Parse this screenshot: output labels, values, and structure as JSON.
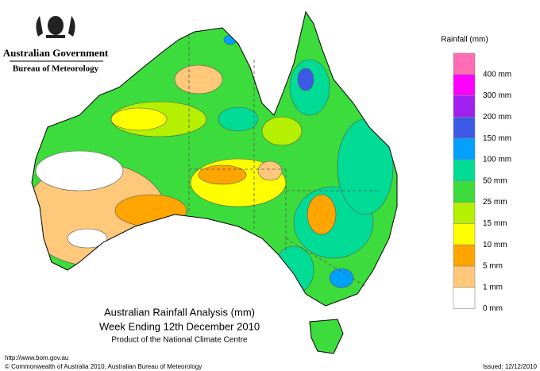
{
  "header": {
    "org": "Australian Government",
    "bureau": "Bureau of Meteorology"
  },
  "legend": {
    "title": "Rainfall (mm)",
    "items": [
      {
        "label": "400 mm",
        "color": "#ff6eb4"
      },
      {
        "label": "300 mm",
        "color": "#ff00ff"
      },
      {
        "label": "200 mm",
        "color": "#a020f0"
      },
      {
        "label": "150 mm",
        "color": "#3c5ae6"
      },
      {
        "label": "100 mm",
        "color": "#00a0ff"
      },
      {
        "label": "50 mm",
        "color": "#00dc96"
      },
      {
        "label": "25 mm",
        "color": "#3cdc3c"
      },
      {
        "label": "15 mm",
        "color": "#b4f000"
      },
      {
        "label": "10 mm",
        "color": "#ffff00"
      },
      {
        "label": "5 mm",
        "color": "#ffa500"
      },
      {
        "label": "1 mm",
        "color": "#ffc87a"
      },
      {
        "label": "0 mm",
        "color": "#ffffff"
      }
    ]
  },
  "caption": {
    "title": "Australian Rainfall Analysis (mm)",
    "subtitle": "Week Ending 12th December 2010",
    "credit": "Product of the National Climate Centre"
  },
  "footer": {
    "url": "http://www.bom.gov.au",
    "copyright": "© Commonwealth of Australia 2010, Australian Bureau of Meteorology",
    "issued": "Issued: 12/12/2010"
  }
}
